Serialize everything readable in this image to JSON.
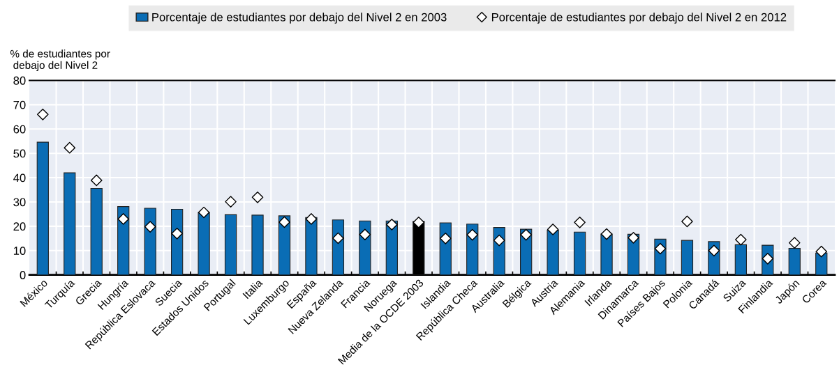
{
  "chart_data": {
    "type": "bar",
    "ylabel": "% de estudiantes por\n debajo del Nivel 2",
    "categories": [
      "México",
      "Turquía",
      "Grecia",
      "Hungría",
      "República Eslovaca",
      "Suecia",
      "Estados Unidos",
      "Portugal",
      "Italia",
      "Luxemburgo",
      "España",
      "Nueva Zelanda",
      "Francia",
      "Noruega",
      "Media de la OCDE 2003",
      "Islandia",
      "República Checa",
      "Australia",
      "Bélgica",
      "Austria",
      "Alemania",
      "Irlanda",
      "Dinamarca",
      "Países Bajos",
      "Polonia",
      "Canadá",
      "Suiza",
      "Finlandia",
      "Japón",
      "Corea"
    ],
    "series": [
      {
        "name": "Porcentaje de estudiantes por debajo del Nivel 2 en 2003",
        "color": "#0a6db5",
        "colors": [
          "#0a6db5",
          "#0a6db5",
          "#0a6db5",
          "#0a6db5",
          "#0a6db5",
          "#0a6db5",
          "#0a6db5",
          "#0a6db5",
          "#0a6db5",
          "#0a6db5",
          "#0a6db5",
          "#0a6db5",
          "#0a6db5",
          "#0a6db5",
          "#000000",
          "#0a6db5",
          "#0a6db5",
          "#0a6db5",
          "#0a6db5",
          "#0a6db5",
          "#0a6db5",
          "#0a6db5",
          "#0a6db5",
          "#0a6db5",
          "#0a6db5",
          "#0a6db5",
          "#0a6db5",
          "#0a6db5",
          "#0a6db5",
          "#0a6db5"
        ],
        "values": [
          54.6,
          42.0,
          35.6,
          28.1,
          27.4,
          27.0,
          25.7,
          24.8,
          24.6,
          24.3,
          23.6,
          22.6,
          22.2,
          22.2,
          22.0,
          21.4,
          20.9,
          19.5,
          18.8,
          18.4,
          17.6,
          16.8,
          16.7,
          14.7,
          14.2,
          13.7,
          12.4,
          12.2,
          10.9,
          9.0
        ]
      },
      {
        "name": "Porcentaje de estudiantes por debajo del Nivel 2 en 2012",
        "type": "scatter",
        "marker": "diamond",
        "color": "#ffffff",
        "values": [
          66.0,
          52.3,
          38.9,
          23.0,
          19.8,
          17.0,
          25.7,
          30.1,
          31.9,
          21.7,
          23.0,
          15.1,
          16.6,
          20.7,
          21.6,
          15.0,
          16.5,
          14.2,
          16.5,
          18.7,
          21.6,
          16.8,
          15.3,
          10.8,
          22.0,
          10.0,
          14.5,
          6.7,
          13.2,
          9.6
        ]
      }
    ],
    "ylim": [
      0,
      80
    ],
    "yticks": [
      0,
      10,
      20,
      30,
      40,
      50,
      60,
      70,
      80
    ],
    "grid": true,
    "legend": "top"
  }
}
